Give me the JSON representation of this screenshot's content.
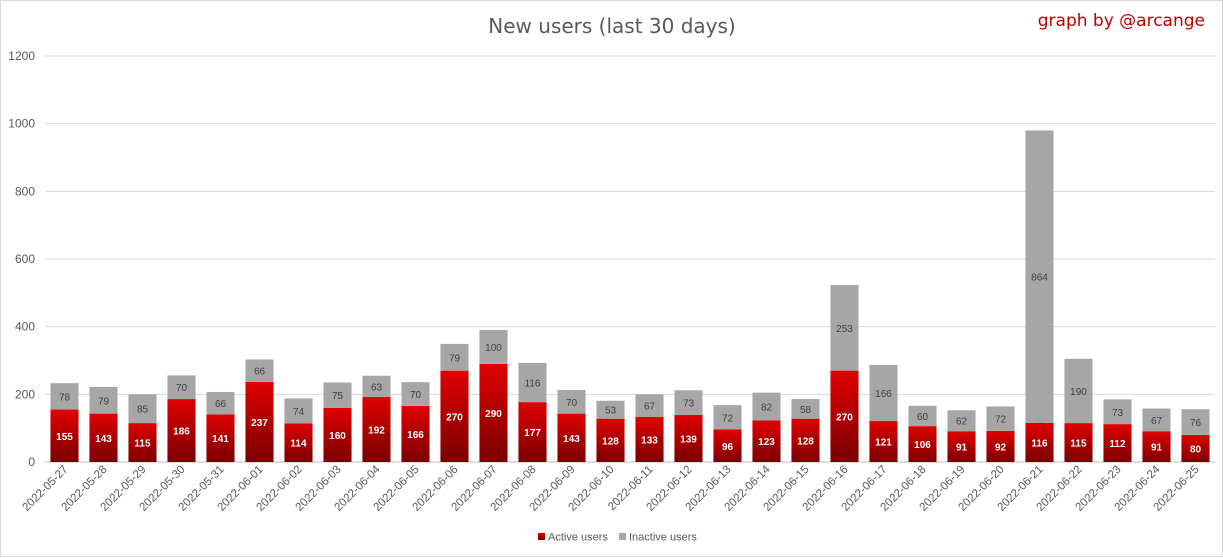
{
  "chart_data": {
    "type": "bar",
    "stacked": true,
    "title": "New users (last 30 days)",
    "credit": "graph by @arcange",
    "categories": [
      "2022-05-27",
      "2022-05-28",
      "2022-05-29",
      "2022-05-30",
      "2022-05-31",
      "2022-06-01",
      "2022-06-02",
      "2022-06-03",
      "2022-06-04",
      "2022-06-05",
      "2022-06-06",
      "2022-06-07",
      "2022-06-08",
      "2022-06-09",
      "2022-06-10",
      "2022-06-11",
      "2022-06-12",
      "2022-06-13",
      "2022-06-14",
      "2022-06-15",
      "2022-06-16",
      "2022-06-17",
      "2022-06-18",
      "2022-06-19",
      "2022-06-20",
      "2022-06-21",
      "2022-06-22",
      "2022-06-23",
      "2022-06-24",
      "2022-06-25"
    ],
    "series": [
      {
        "name": "Active users",
        "color": "#c00000",
        "values": [
          155,
          143,
          115,
          186,
          141,
          237,
          114,
          160,
          192,
          166,
          270,
          290,
          177,
          143,
          128,
          133,
          139,
          96,
          123,
          128,
          270,
          121,
          106,
          91,
          92,
          116,
          115,
          112,
          91,
          80
        ]
      },
      {
        "name": "Inactive users",
        "color": "#a6a6a6",
        "values": [
          78,
          79,
          85,
          70,
          66,
          66,
          74,
          75,
          63,
          70,
          79,
          100,
          116,
          70,
          53,
          67,
          73,
          72,
          82,
          58,
          253,
          166,
          60,
          62,
          72,
          864,
          190,
          73,
          67,
          76
        ]
      }
    ],
    "ylim": [
      0,
      1200
    ],
    "yticks": [
      0,
      200,
      400,
      600,
      800,
      1000,
      1200
    ],
    "grid": true,
    "legend": "bottom-center"
  }
}
